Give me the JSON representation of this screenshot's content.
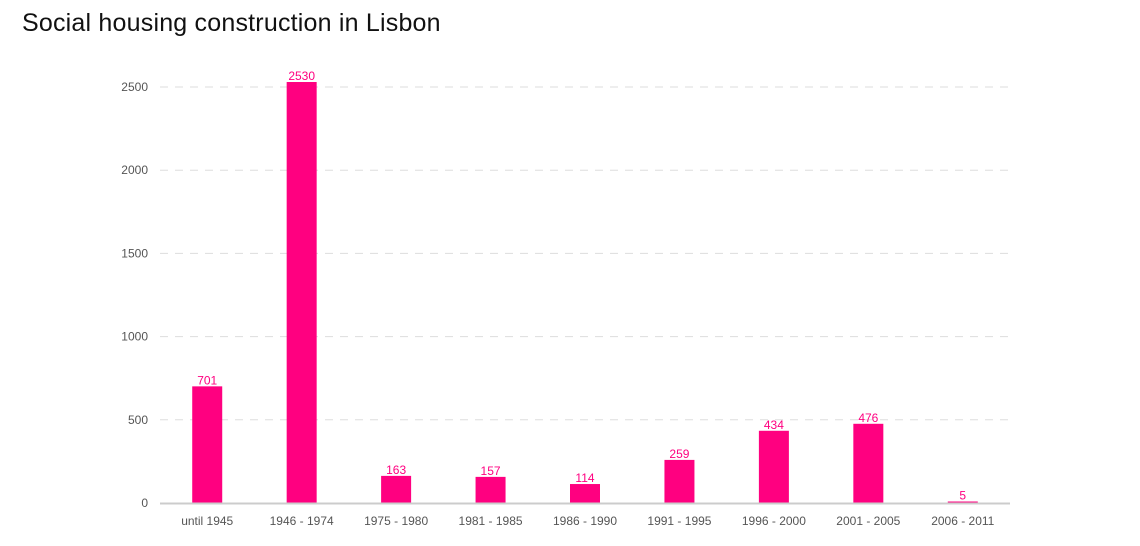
{
  "title": "Social housing construction in Lisbon",
  "colors": {
    "bar": "#ff0080",
    "grid": "#dddddd",
    "axis": "#cccccc",
    "tick_text": "#555555",
    "title_text": "#111111"
  },
  "chart_data": {
    "type": "bar",
    "title": "Social housing construction in Lisbon",
    "xlabel": "",
    "ylabel": "",
    "categories": [
      "until 1945",
      "1946 - 1974",
      "1975 - 1980",
      "1981 - 1985",
      "1986 - 1990",
      "1991 - 1995",
      "1996 - 2000",
      "2001 - 2005",
      "2006 - 2011"
    ],
    "values": [
      701,
      2530,
      163,
      157,
      114,
      259,
      434,
      476,
      5
    ],
    "ylim": [
      0,
      2500
    ],
    "yticks": [
      0,
      500,
      1000,
      1500,
      2000,
      2500
    ],
    "grid": true,
    "grid_style": "dashed",
    "legend": "none",
    "data_labels": true
  }
}
